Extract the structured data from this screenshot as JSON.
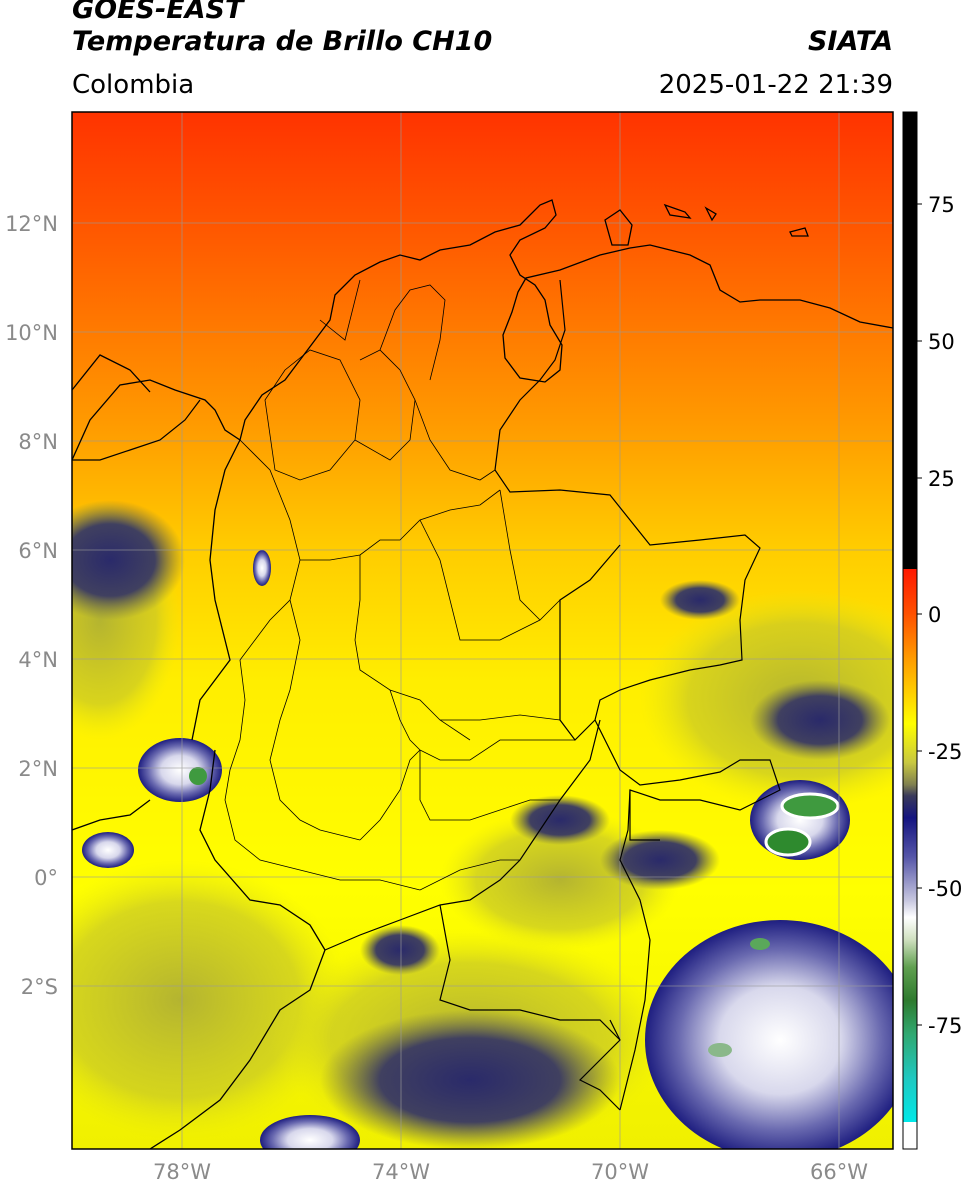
{
  "header": {
    "satellite": "GOES-EAST",
    "product": "Temperatura de Brillo CH10",
    "brand": "SIATA",
    "region": "Colombia",
    "timestamp": "2025-01-22 21:39"
  },
  "map": {
    "lat_ticks": [
      "12°N",
      "10°N",
      "8°N",
      "6°N",
      "4°N",
      "2°N",
      "0°",
      "2°S"
    ],
    "lon_ticks": [
      "78°W",
      "74°W",
      "70°W",
      "66°W"
    ],
    "lon_range": [
      -80,
      -65
    ],
    "lat_range": [
      -4.9,
      14.1
    ],
    "gridlines": true
  },
  "colorbar": {
    "ticks": [
      "75",
      "50",
      "25",
      "0",
      "-25",
      "-50",
      "-75"
    ],
    "range": [
      -95,
      90
    ],
    "colors": {
      "black": "#000000",
      "red": "#ff2a00",
      "orange": "#ff9900",
      "yellow": "#ffff00",
      "olive": "#a8a830",
      "navy": "#1a1a80",
      "white": "#ffffff",
      "green": "#2e8a2e",
      "cyan": "#00e0e0"
    }
  }
}
